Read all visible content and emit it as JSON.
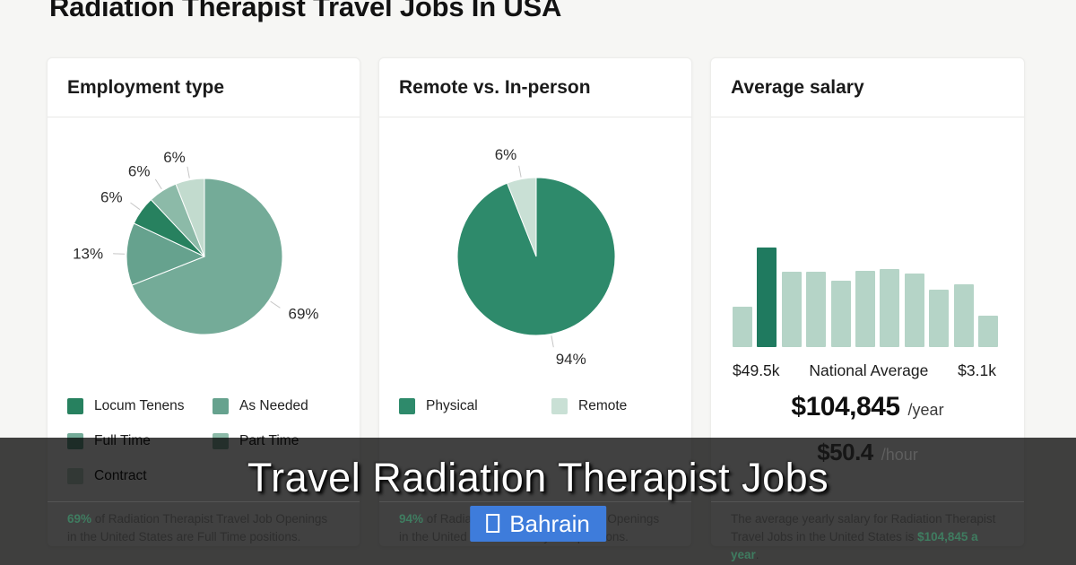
{
  "page_title": "Radiation Therapist Travel Jobs In USA",
  "cards": {
    "employment": {
      "title": "Employment type",
      "footer": {
        "highlight": "69%",
        "text": " of Radiation Therapist Travel Job Openings in the United States are Full Time positions."
      }
    },
    "remote": {
      "title": "Remote vs. In-person",
      "footer": {
        "highlight": "94%",
        "text": " of Radiation Therapist Travel Job Openings in the United States are Physical positions."
      }
    },
    "salary": {
      "title": "Average salary",
      "yearly_value": "$104,845",
      "yearly_unit": "/year",
      "hourly_value": "$50.4",
      "hourly_unit": "/hour",
      "footer": {
        "text": "The average yearly salary for Radiation Therapist Travel Jobs in the United States is ",
        "highlight": "$104,845 a year",
        "suffix": "."
      }
    }
  },
  "overlay": {
    "title": "Travel Radiation Therapist Jobs",
    "button_label": "Bahrain",
    "button_color": "#3e7cdb"
  },
  "chart_data": [
    {
      "id": "employment_pie",
      "type": "pie",
      "title": "Employment type",
      "segments": [
        {
          "label": "Full Time",
          "value": 69,
          "color": "#74ab98"
        },
        {
          "label": "As Needed",
          "value": 13,
          "color": "#66a28e"
        },
        {
          "label": "Locum Tenens",
          "value": 6,
          "color": "#27815f"
        },
        {
          "label": "Part Time",
          "value": 6,
          "color": "#8cbaa8"
        },
        {
          "label": "Contract",
          "value": 6,
          "color": "#c2dbce"
        }
      ],
      "legend_order": [
        "Locum Tenens",
        "As Needed",
        "Full Time",
        "Part Time",
        "Contract"
      ],
      "legend_position": "bottom"
    },
    {
      "id": "remote_pie",
      "type": "pie",
      "title": "Remote vs. In-person",
      "segments": [
        {
          "label": "Physical",
          "value": 94,
          "color": "#2e8a6b"
        },
        {
          "label": "Remote",
          "value": 6,
          "color": "#c9e0d5"
        }
      ],
      "legend_order": [
        "Physical",
        "Remote"
      ],
      "legend_position": "bottom"
    },
    {
      "id": "salary_histogram",
      "type": "bar",
      "title": "Average salary",
      "values": [
        41,
        100,
        76,
        76,
        67,
        77,
        78,
        74,
        58,
        63,
        32
      ],
      "highlight_index": 1,
      "bar_color": "#b5d4c7",
      "highlight_color": "#1f7a5f",
      "x_labels": [
        "$49.5k",
        "National Average",
        "$3.1k"
      ],
      "yearly_salary": "$104,845 /year",
      "hourly_salary": "$50.4 /hour",
      "grid": false
    }
  ]
}
